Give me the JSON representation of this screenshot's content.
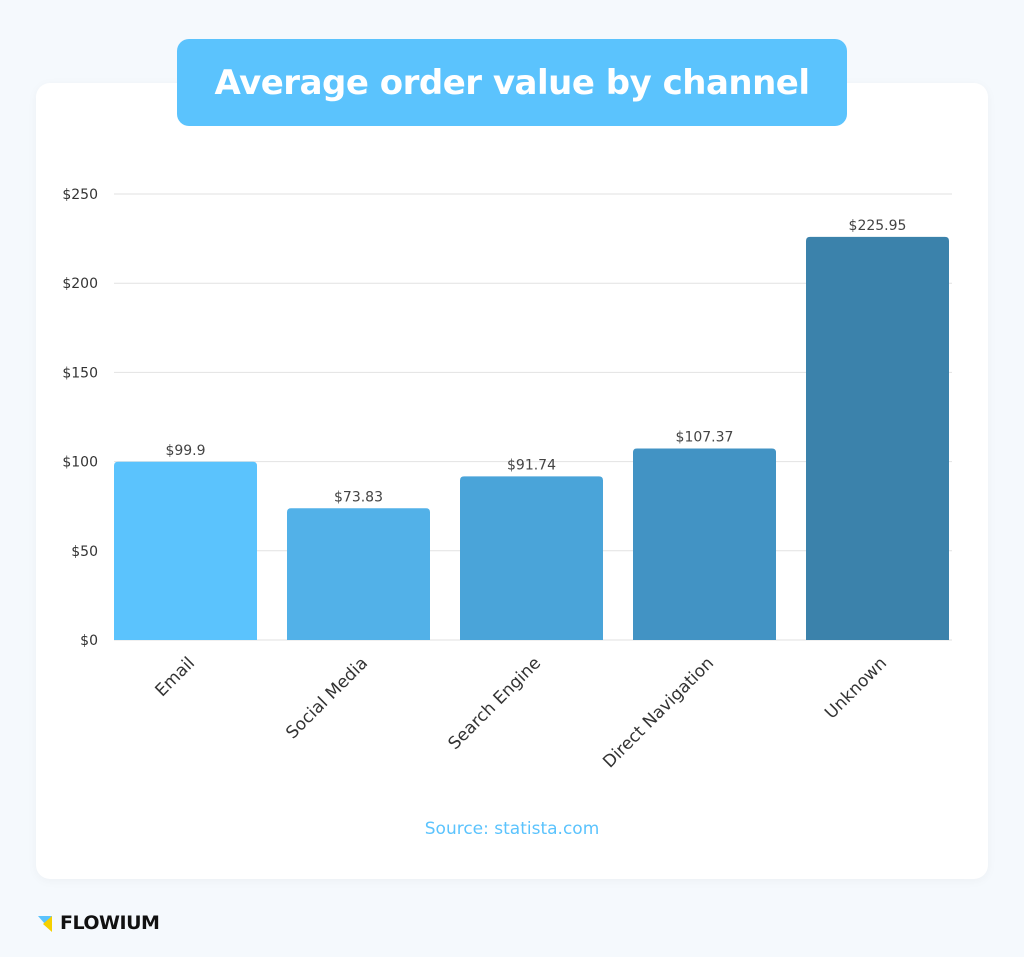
{
  "chart_data": {
    "type": "bar",
    "title": "Average order value by channel",
    "categories": [
      "Email",
      "Social Media",
      "Search Engine",
      "Direct Navigation",
      "Unknown"
    ],
    "values": [
      99.9,
      73.83,
      91.74,
      107.37,
      225.95
    ],
    "data_labels": [
      "$99.9",
      "$73.83",
      "$91.74",
      "$107.37",
      "$225.95"
    ],
    "bar_colors": [
      "#5bc3fd",
      "#52b1e8",
      "#4aa4d9",
      "#4293c4",
      "#3b82ab"
    ],
    "ylim": [
      0,
      250
    ],
    "yticks": [
      0,
      50,
      100,
      150,
      200,
      250
    ],
    "ytick_labels": [
      "$0",
      "$50",
      "$100",
      "$150",
      "$200",
      "$250"
    ],
    "grid": true,
    "xlabel": "",
    "ylabel": ""
  },
  "source": "Source: statista.com",
  "brand": {
    "name": "FLOWIUM",
    "colors": [
      "#5bc3fd",
      "#f5d000"
    ]
  }
}
